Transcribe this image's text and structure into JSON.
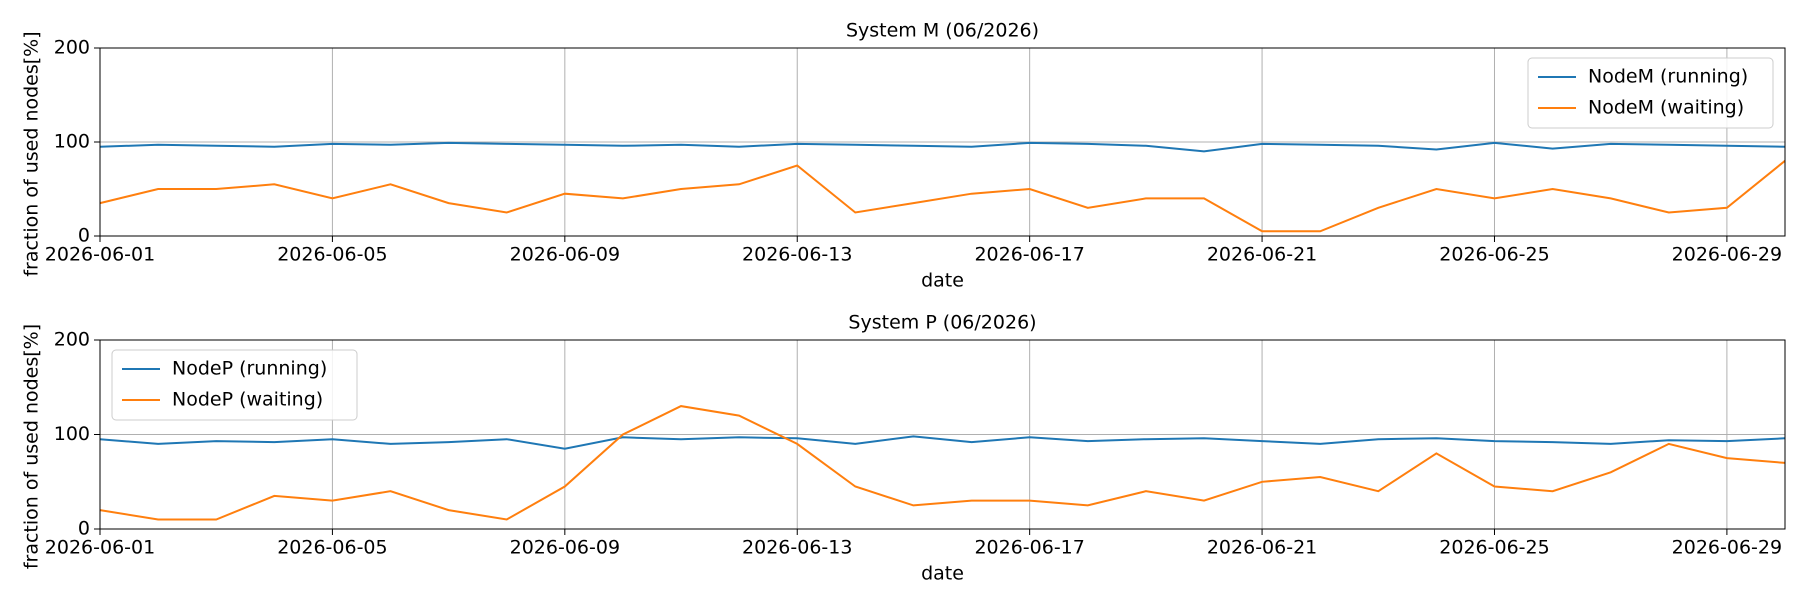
{
  "chart_data": [
    {
      "type": "line",
      "title": "System M (06/2026)",
      "xlabel": "date",
      "ylabel": "fraction of used nodes[%]",
      "x": [
        "2026-06-01",
        "2026-06-02",
        "2026-06-03",
        "2026-06-04",
        "2026-06-05",
        "2026-06-06",
        "2026-06-07",
        "2026-06-08",
        "2026-06-09",
        "2026-06-10",
        "2026-06-11",
        "2026-06-12",
        "2026-06-13",
        "2026-06-14",
        "2026-06-15",
        "2026-06-16",
        "2026-06-17",
        "2026-06-18",
        "2026-06-19",
        "2026-06-20",
        "2026-06-21",
        "2026-06-22",
        "2026-06-23",
        "2026-06-24",
        "2026-06-25",
        "2026-06-26",
        "2026-06-27",
        "2026-06-28",
        "2026-06-29",
        "2026-06-30"
      ],
      "series": [
        {
          "name": "NodeM (running)",
          "color": "#1f77b4",
          "values": [
            95,
            97,
            96,
            95,
            98,
            97,
            99,
            98,
            97,
            96,
            97,
            95,
            98,
            97,
            96,
            95,
            99,
            98,
            96,
            90,
            98,
            97,
            96,
            92,
            99,
            93,
            98,
            97,
            96,
            95
          ]
        },
        {
          "name": "NodeM (waiting)",
          "color": "#ff7f0e",
          "values": [
            35,
            50,
            50,
            55,
            40,
            55,
            35,
            25,
            45,
            40,
            50,
            55,
            75,
            25,
            35,
            45,
            50,
            30,
            40,
            40,
            5,
            5,
            30,
            50,
            40,
            50,
            40,
            25,
            30,
            80
          ]
        }
      ],
      "xlim": [
        "2026-06-01",
        "2026-06-30"
      ],
      "xticks": [
        "2026-06-01",
        "2026-06-05",
        "2026-06-09",
        "2026-06-13",
        "2026-06-17",
        "2026-06-21",
        "2026-06-25",
        "2026-06-29"
      ],
      "ylim": [
        0,
        200
      ],
      "yticks": [
        0,
        100,
        200
      ],
      "grid": true,
      "legend": "upper right"
    },
    {
      "type": "line",
      "title": "System P (06/2026)",
      "xlabel": "date",
      "ylabel": "fraction of used nodes[%]",
      "x": [
        "2026-06-01",
        "2026-06-02",
        "2026-06-03",
        "2026-06-04",
        "2026-06-05",
        "2026-06-06",
        "2026-06-07",
        "2026-06-08",
        "2026-06-09",
        "2026-06-10",
        "2026-06-11",
        "2026-06-12",
        "2026-06-13",
        "2026-06-14",
        "2026-06-15",
        "2026-06-16",
        "2026-06-17",
        "2026-06-18",
        "2026-06-19",
        "2026-06-20",
        "2026-06-21",
        "2026-06-22",
        "2026-06-23",
        "2026-06-24",
        "2026-06-25",
        "2026-06-26",
        "2026-06-27",
        "2026-06-28",
        "2026-06-29",
        "2026-06-30"
      ],
      "series": [
        {
          "name": "NodeP (running)",
          "color": "#1f77b4",
          "values": [
            95,
            90,
            93,
            92,
            95,
            90,
            92,
            95,
            85,
            97,
            95,
            97,
            96,
            90,
            98,
            92,
            97,
            93,
            95,
            96,
            93,
            90,
            95,
            96,
            93,
            92,
            90,
            94,
            93,
            96
          ]
        },
        {
          "name": "NodeP (waiting)",
          "color": "#ff7f0e",
          "values": [
            20,
            10,
            10,
            35,
            30,
            40,
            20,
            10,
            45,
            100,
            130,
            120,
            90,
            45,
            25,
            30,
            30,
            25,
            40,
            30,
            50,
            55,
            40,
            80,
            45,
            40,
            60,
            90,
            75,
            70
          ]
        }
      ],
      "xlim": [
        "2026-06-01",
        "2026-06-30"
      ],
      "xticks": [
        "2026-06-01",
        "2026-06-05",
        "2026-06-09",
        "2026-06-13",
        "2026-06-17",
        "2026-06-21",
        "2026-06-25",
        "2026-06-29"
      ],
      "ylim": [
        0,
        200
      ],
      "yticks": [
        0,
        100,
        200
      ],
      "grid": true,
      "legend": "upper left"
    }
  ]
}
